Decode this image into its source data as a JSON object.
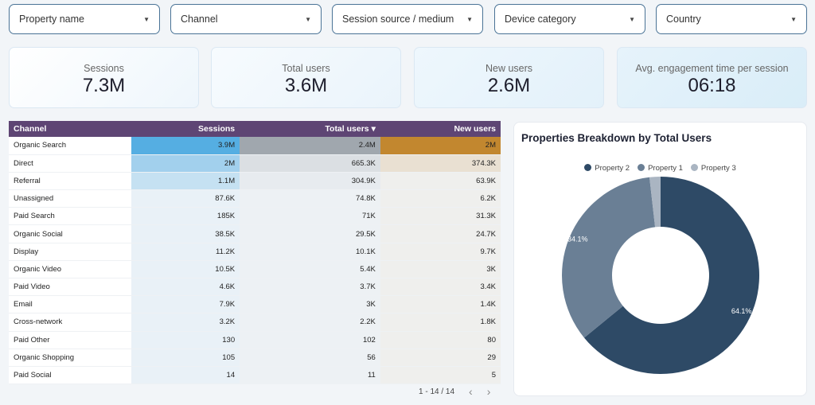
{
  "filters": [
    "Property name",
    "Channel",
    "Session source / medium",
    "Device category",
    "Country"
  ],
  "scorecards": [
    {
      "label": "Sessions",
      "value": "7.3M"
    },
    {
      "label": "Total users",
      "value": "3.6M"
    },
    {
      "label": "New users",
      "value": "2.6M"
    },
    {
      "label": "Avg. engagement time per session",
      "value": "06:18"
    }
  ],
  "table": {
    "headers": [
      "Channel",
      "Sessions",
      "Total users",
      "New users"
    ],
    "sort_indicator": "▾",
    "heat_colors": [
      "#55aee2",
      "#a0a7ae",
      "#c2872f"
    ],
    "rows": [
      [
        "Organic Search",
        "3.9M",
        "2.4M",
        "2M"
      ],
      [
        "Direct",
        "2M",
        "665.3K",
        "374.3K"
      ],
      [
        "Referral",
        "1.1M",
        "304.9K",
        "63.9K"
      ],
      [
        "Unassigned",
        "87.6K",
        "74.8K",
        "6.2K"
      ],
      [
        "Paid Search",
        "185K",
        "71K",
        "31.3K"
      ],
      [
        "Organic Social",
        "38.5K",
        "29.5K",
        "24.7K"
      ],
      [
        "Display",
        "11.2K",
        "10.1K",
        "9.7K"
      ],
      [
        "Organic Video",
        "10.5K",
        "5.4K",
        "3K"
      ],
      [
        "Paid Video",
        "4.6K",
        "3.7K",
        "3.4K"
      ],
      [
        "Email",
        "7.9K",
        "3K",
        "1.4K"
      ],
      [
        "Cross-network",
        "3.2K",
        "2.2K",
        "1.8K"
      ],
      [
        "Paid Other",
        "130",
        "102",
        "80"
      ],
      [
        "Organic Shopping",
        "105",
        "56",
        "29"
      ],
      [
        "Paid Social",
        "14",
        "11",
        "5"
      ]
    ],
    "pagination": "1 - 14 / 14"
  },
  "chart_data": {
    "type": "pie",
    "title": "Properties Breakdown by Total Users",
    "donut": true,
    "legend_position": "top",
    "slices": [
      {
        "name": "Property 2",
        "value": 64.1,
        "label": "64.1%",
        "color": "#2e4a66"
      },
      {
        "name": "Property 1",
        "value": 34.1,
        "label": "34.1%",
        "color": "#6a7f95"
      },
      {
        "name": "Property 3",
        "value": 1.8,
        "label": "",
        "color": "#aab5c2"
      }
    ]
  }
}
